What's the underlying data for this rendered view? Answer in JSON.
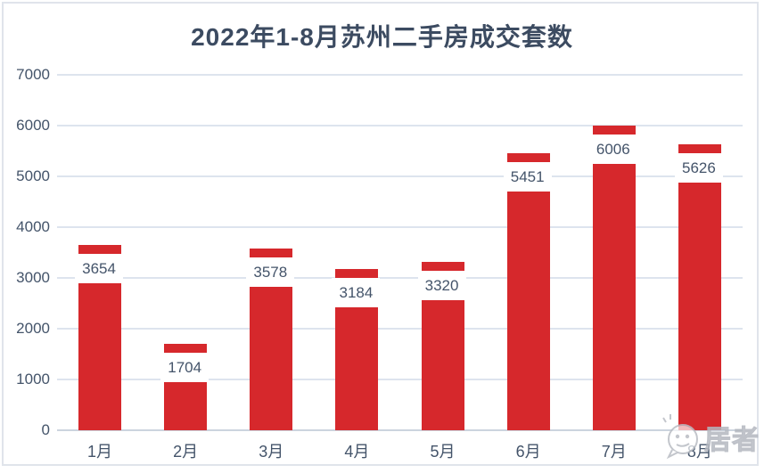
{
  "title": "2022年1-8月苏州二手房成交套数",
  "watermark": {
    "text": "居者",
    "icon": "wechat-face-icon"
  },
  "colors": {
    "bar": "#d6282c",
    "title_text": "#3c4b61",
    "axis_text": "#44546a",
    "gridline": "#dde4ee",
    "axis_line": "#ccd4de",
    "frame_border": "#e0e4eb",
    "data_label_bg": "#ffffff"
  },
  "chart_data": {
    "type": "bar",
    "title": "2022年1-8月苏州二手房成交套数",
    "categories": [
      "1月",
      "2月",
      "3月",
      "4月",
      "5月",
      "6月",
      "7月",
      "8月"
    ],
    "values": [
      3654,
      1704,
      3578,
      3184,
      3320,
      5451,
      6006,
      5626
    ],
    "xlabel": "",
    "ylabel": "",
    "ylim": [
      0,
      7000
    ],
    "ytick_step": 1000,
    "grid": true,
    "legend": false,
    "data_labels": true
  }
}
